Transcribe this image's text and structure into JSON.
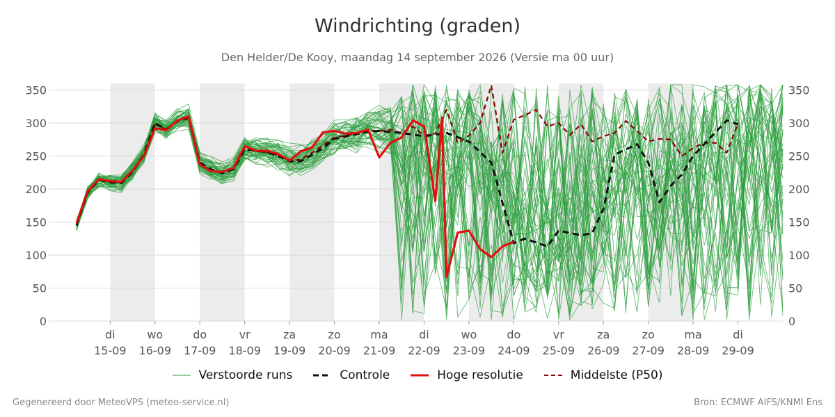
{
  "header": {
    "title": "Windrichting (graden)",
    "subtitle": "Den Helder/De Kooy, maandag 14 september 2026 (Versie ma 00 uur)"
  },
  "legend": {
    "perturbed": "Verstoorde runs",
    "control": "Controle",
    "hires": "Hoge resolutie",
    "median": "Middelste (P50)"
  },
  "footer": {
    "left": "Gegenereerd door MeteoVPS (meteo-service.nl)",
    "right": "Bron: ECMWF AIFS/KNMI Ens"
  },
  "colors": {
    "perturbed": "#2e9e3e",
    "control": "#111111",
    "hires": "#e01010",
    "median": "#8b0000",
    "night_band": "#ececec",
    "grid": "#d9d9d9"
  },
  "chart_data": {
    "type": "line",
    "title": "Windrichting (graden)",
    "ylim": [
      0,
      360
    ],
    "yticks": [
      0,
      50,
      100,
      150,
      200,
      250,
      300,
      350
    ],
    "xlim": [
      -0.75,
      15
    ],
    "x_unit": "days from 15-09 00 uur",
    "xticks": [
      {
        "x": 0,
        "day": "di",
        "date": "15-09"
      },
      {
        "x": 1,
        "day": "wo",
        "date": "16-09"
      },
      {
        "x": 2,
        "day": "do",
        "date": "17-09"
      },
      {
        "x": 3,
        "day": "vr",
        "date": "18-09"
      },
      {
        "x": 4,
        "day": "za",
        "date": "19-09"
      },
      {
        "x": 5,
        "day": "zo",
        "date": "20-09"
      },
      {
        "x": 6,
        "day": "ma",
        "date": "21-09"
      },
      {
        "x": 7,
        "day": "di",
        "date": "22-09"
      },
      {
        "x": 8,
        "day": "wo",
        "date": "23-09"
      },
      {
        "x": 9,
        "day": "do",
        "date": "24-09"
      },
      {
        "x": 10,
        "day": "vr",
        "date": "25-09"
      },
      {
        "x": 11,
        "day": "za",
        "date": "26-09"
      },
      {
        "x": 12,
        "day": "zo",
        "date": "27-09"
      },
      {
        "x": 13,
        "day": "ma",
        "date": "28-09"
      },
      {
        "x": 14,
        "day": "di",
        "date": "29-09"
      }
    ],
    "shaded_bands": [
      [
        0,
        1
      ],
      [
        2,
        3
      ],
      [
        4,
        5
      ],
      [
        6,
        7
      ],
      [
        8,
        9
      ],
      [
        10,
        11
      ],
      [
        12,
        13
      ]
    ],
    "grid": true,
    "legend_position": "bottom",
    "series": [
      {
        "name": "Hoge resolutie",
        "style": "solid-thick",
        "x": [
          -0.75,
          -0.5,
          -0.25,
          0,
          0.25,
          0.5,
          0.75,
          1,
          1.25,
          1.5,
          1.75,
          2,
          2.25,
          2.5,
          2.75,
          3,
          3.25,
          3.5,
          3.75,
          4,
          4.25,
          4.5,
          4.75,
          5,
          5.25,
          5.5,
          5.75,
          6,
          6.25,
          6.5,
          6.75,
          7,
          7.25,
          7.4,
          7.5,
          7.75,
          8,
          8.25,
          8.5,
          8.75,
          9
        ],
        "y": [
          148,
          197,
          215,
          212,
          211,
          228,
          250,
          292,
          289,
          304,
          310,
          237,
          227,
          226,
          232,
          265,
          258,
          258,
          253,
          243,
          257,
          263,
          286,
          288,
          284,
          285,
          290,
          248,
          270,
          278,
          304,
          295,
          182,
          308,
          67,
          134,
          137,
          109,
          97,
          113,
          120
        ]
      },
      {
        "name": "Controle",
        "style": "dashed",
        "x": [
          -0.75,
          -0.5,
          -0.25,
          0,
          0.25,
          0.5,
          0.75,
          1,
          1.25,
          1.5,
          1.75,
          2,
          2.25,
          2.5,
          2.75,
          3,
          3.25,
          3.5,
          3.75,
          4,
          4.25,
          4.5,
          4.75,
          5,
          5.25,
          5.5,
          5.75,
          6,
          6.5,
          7,
          7.5,
          8,
          8.5,
          9,
          9.25,
          9.75,
          10,
          10.5,
          10.75,
          11,
          11.25,
          11.75,
          12,
          12.25,
          12.5,
          12.75,
          13,
          13.25,
          13.75,
          14
        ],
        "y": [
          145,
          195,
          214,
          210,
          209,
          226,
          252,
          300,
          290,
          303,
          308,
          240,
          230,
          224,
          230,
          260,
          258,
          256,
          250,
          242,
          242,
          252,
          262,
          276,
          280,
          283,
          287,
          288,
          285,
          280,
          285,
          272,
          240,
          118,
          125,
          113,
          137,
          130,
          133,
          170,
          252,
          268,
          240,
          180,
          205,
          222,
          250,
          268,
          304,
          298
        ]
      },
      {
        "name": "Middelste (P50)",
        "style": "dashed",
        "x": [
          -0.75,
          -0.5,
          -0.25,
          0,
          0.25,
          0.5,
          0.75,
          1,
          1.25,
          1.5,
          1.75,
          2,
          2.25,
          2.5,
          2.75,
          3,
          3.25,
          3.5,
          3.75,
          4,
          4.25,
          4.5,
          4.75,
          5,
          5.25,
          5.5,
          5.75,
          6,
          6.25,
          6.5,
          6.75,
          7,
          7.25,
          7.5,
          7.75,
          8,
          8.25,
          8.5,
          8.75,
          9,
          9.25,
          9.5,
          9.75,
          10,
          10.25,
          10.5,
          10.75,
          11,
          11.25,
          11.5,
          11.75,
          12,
          12.25,
          12.5,
          12.75,
          13,
          13.25,
          13.5,
          13.75,
          14
        ],
        "y": [
          145,
          196,
          214,
          211,
          210,
          227,
          250,
          298,
          290,
          303,
          309,
          238,
          228,
          225,
          231,
          262,
          257,
          256,
          251,
          242,
          245,
          255,
          266,
          278,
          281,
          284,
          288,
          288,
          290,
          285,
          295,
          281,
          284,
          320,
          270,
          281,
          300,
          357,
          255,
          305,
          312,
          320,
          295,
          300,
          282,
          298,
          272,
          280,
          285,
          303,
          288,
          272,
          276,
          275,
          250,
          262,
          270,
          270,
          255,
          300
        ]
      }
    ]
  }
}
